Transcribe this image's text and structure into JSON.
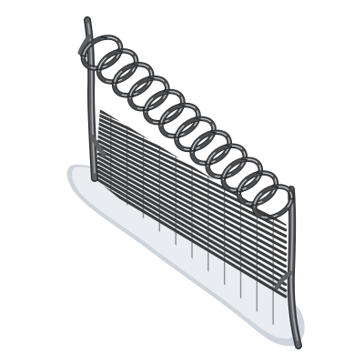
{
  "sprite": {
    "subject": "razor-wire-fence",
    "colors": {
      "background": "#ffffff",
      "post": "#5e6164",
      "post_highlight": "#a9adb1",
      "post_outline": "#2d2f31",
      "mesh": "#3a3c3e",
      "mesh_light": "#8c9094",
      "coil": "#4c4f52",
      "coil_highlight": "#c7cacd",
      "coil_outline": "#2a2c2e",
      "snow": "#e9edf1",
      "snow_shadow": "#cdd4db"
    },
    "coil_loop_count": 12,
    "mesh_rung_count": 18,
    "mesh_vertical_count": 12
  }
}
